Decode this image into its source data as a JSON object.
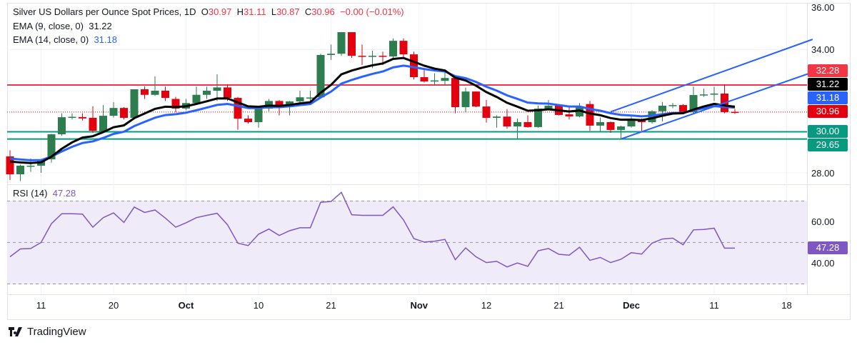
{
  "header": {
    "title": "Silver US Dollars per Ounce Spot Prices, 1D",
    "o_label": "O",
    "o": "30.97",
    "h_label": "H",
    "h": "31.11",
    "l_label": "L",
    "l": "30.87",
    "c_label": "C",
    "c": "30.96",
    "change": "−0.00 (−0.01%)",
    "ema9_label": "EMA (9, close, 0)",
    "ema9_value": "31.22",
    "ema14_label": "EMA (14, close, 0)",
    "ema14_value": "31.18",
    "rsi_label": "RSI (14)",
    "rsi_value": "47.28"
  },
  "brand": "TradingView",
  "colors": {
    "up": "#2e7d4f",
    "down": "#e3000f",
    "ema9": "#000000",
    "ema14": "#2962ff",
    "resistance": "#f23645",
    "support": "#089981",
    "channel": "#2962ff",
    "rsi": "#7e57c2",
    "rsi_band": "#f0ebf8"
  },
  "chart_data": [
    {
      "type": "candlestick",
      "title": "Silver US Dollars per Ounce Spot Prices, 1D",
      "ylim": [
        27.5,
        36.2
      ],
      "price_ticks": [
        "36.00",
        "34.00",
        "28.00"
      ],
      "x_ticks": [
        "11",
        "20",
        "Oct",
        "10",
        "21",
        "Nov",
        "12",
        "21",
        "Dec",
        "11",
        "18"
      ],
      "x_tick_candle_index": [
        3,
        10,
        17,
        24,
        31,
        39.5,
        46,
        53,
        60,
        68,
        75
      ],
      "ohlc": [
        [
          28.8,
          29.1,
          27.65,
          27.93
        ],
        [
          27.93,
          28.4,
          27.6,
          28.35
        ],
        [
          28.32,
          28.7,
          28.05,
          28.35
        ],
        [
          28.35,
          28.66,
          28.0,
          28.66
        ],
        [
          28.66,
          29.9,
          28.5,
          29.88
        ],
        [
          29.88,
          30.9,
          29.8,
          30.71
        ],
        [
          30.71,
          30.9,
          30.6,
          30.73
        ],
        [
          30.72,
          30.9,
          30.55,
          30.65
        ],
        [
          30.68,
          31.25,
          29.95,
          30.05
        ],
        [
          30.02,
          31.3,
          29.95,
          30.78
        ],
        [
          30.78,
          31.45,
          30.7,
          31.16
        ],
        [
          31.16,
          31.2,
          30.6,
          30.68
        ],
        [
          30.68,
          32.07,
          30.6,
          32.07
        ],
        [
          32.07,
          32.2,
          31.6,
          31.8
        ],
        [
          31.8,
          32.7,
          31.75,
          32.0
        ],
        [
          32.0,
          32.2,
          31.5,
          31.65
        ],
        [
          31.6,
          31.7,
          30.95,
          31.13
        ],
        [
          31.13,
          31.6,
          31.05,
          31.4
        ],
        [
          31.4,
          32.2,
          31.35,
          31.8
        ],
        [
          31.8,
          32.2,
          31.6,
          32.0
        ],
        [
          32.0,
          32.8,
          31.5,
          32.16
        ],
        [
          32.16,
          32.3,
          31.5,
          31.65
        ],
        [
          31.65,
          31.7,
          30.1,
          30.64
        ],
        [
          30.64,
          30.8,
          30.4,
          30.47
        ],
        [
          30.47,
          31.15,
          30.2,
          31.13
        ],
        [
          31.13,
          31.6,
          31.0,
          31.5
        ],
        [
          31.5,
          31.55,
          30.8,
          31.2
        ],
        [
          31.2,
          31.5,
          30.8,
          31.48
        ],
        [
          31.48,
          32.0,
          31.4,
          31.68
        ],
        [
          31.65,
          32.0,
          31.35,
          31.67
        ],
        [
          31.68,
          33.8,
          31.6,
          33.74
        ],
        [
          33.74,
          34.25,
          33.5,
          33.8
        ],
        [
          33.8,
          34.85,
          33.7,
          34.85
        ],
        [
          34.85,
          34.85,
          33.6,
          33.7
        ],
        [
          33.7,
          34.25,
          33.25,
          33.68
        ],
        [
          33.68,
          33.95,
          33.1,
          33.7
        ],
        [
          33.7,
          33.9,
          33.25,
          33.68
        ],
        [
          33.67,
          34.55,
          33.6,
          34.43
        ],
        [
          34.43,
          34.55,
          33.6,
          33.77
        ],
        [
          33.77,
          33.9,
          32.55,
          32.66
        ],
        [
          32.66,
          33.1,
          32.4,
          32.45
        ],
        [
          32.48,
          32.85,
          32.25,
          32.5
        ],
        [
          32.48,
          32.9,
          32.25,
          32.62
        ],
        [
          32.62,
          32.62,
          30.9,
          31.2
        ],
        [
          31.2,
          32.15,
          30.95,
          31.96
        ],
        [
          31.96,
          31.96,
          31.2,
          31.23
        ],
        [
          31.23,
          31.55,
          30.45,
          30.68
        ],
        [
          30.68,
          30.8,
          30.2,
          30.74
        ],
        [
          30.74,
          31.11,
          30.15,
          30.26
        ],
        [
          30.26,
          30.65,
          29.65,
          30.47
        ],
        [
          30.47,
          30.8,
          30.2,
          30.23
        ],
        [
          30.23,
          31.27,
          30.2,
          31.13
        ],
        [
          31.13,
          31.55,
          31.05,
          31.27
        ],
        [
          31.27,
          31.3,
          30.8,
          30.82
        ],
        [
          30.85,
          31.27,
          30.6,
          30.75
        ],
        [
          30.75,
          31.4,
          30.7,
          31.23
        ],
        [
          31.35,
          31.5,
          30.05,
          30.3
        ],
        [
          30.3,
          30.7,
          30.0,
          30.47
        ],
        [
          30.47,
          30.5,
          29.95,
          30.09
        ],
        [
          30.09,
          30.3,
          29.65,
          30.26
        ],
        [
          30.26,
          30.75,
          30.2,
          30.6
        ],
        [
          30.6,
          30.65,
          30.05,
          30.47
        ],
        [
          30.47,
          31.05,
          30.4,
          31.0
        ],
        [
          31.0,
          31.45,
          30.5,
          31.27
        ],
        [
          31.28,
          31.4,
          31.15,
          31.3
        ],
        [
          31.3,
          31.35,
          30.9,
          30.95
        ],
        [
          30.95,
          32.2,
          30.9,
          31.79
        ],
        [
          31.82,
          32.1,
          31.7,
          31.82
        ],
        [
          31.86,
          32.2,
          31.5,
          31.86
        ],
        [
          31.86,
          32.3,
          30.9,
          30.96
        ],
        [
          30.97,
          31.11,
          30.87,
          30.96
        ]
      ],
      "ema9_last": 31.22,
      "ema14_last": 31.18,
      "horizontal_levels": [
        {
          "label": "32.28",
          "value": 32.28,
          "kind": "resistance"
        },
        {
          "label": "30.00",
          "value": 30.0,
          "kind": "support"
        },
        {
          "label": "29.65",
          "value": 29.65,
          "kind": "support"
        }
      ],
      "last_price_label": "30.96",
      "ema9_label_value": "31.22",
      "ema14_label_value": "31.18",
      "channel": {
        "lower": [
          [
            59,
            29.65
          ],
          [
            77.5,
            32.9
          ]
        ],
        "upper": [
          [
            58,
            30.97
          ],
          [
            77.5,
            34.5
          ]
        ]
      }
    },
    {
      "type": "line",
      "title": "RSI (14)",
      "ylim": [
        25,
        75
      ],
      "ticks": [
        "60.00",
        "40.00"
      ],
      "bands": [
        70,
        50,
        30
      ],
      "last_label": "47.28",
      "values": [
        43.1,
        46.9,
        47.1,
        50,
        59.1,
        63.9,
        63.9,
        63.7,
        57.4,
        62,
        64.3,
        59.7,
        67.1,
        64.5,
        65.7,
        61.8,
        57.4,
        59.5,
        62,
        63.1,
        64.1,
        58.6,
        49.7,
        48.5,
        54,
        56.5,
        53.4,
        55.7,
        57.1,
        57.1,
        69.4,
        69.8,
        74.2,
        63.4,
        63.1,
        63.1,
        63.1,
        67.2,
        60.9,
        51.9,
        50.2,
        50.6,
        51.5,
        41.7,
        47.4,
        43.1,
        40.3,
        40.9,
        38.2,
        40.1,
        38.5,
        46,
        47.1,
        44.3,
        43.9,
        47.7,
        41.4,
        42.8,
        40.3,
        41.9,
        45.1,
        44.4,
        49.7,
        51.7,
        52.1,
        48.9,
        56.1,
        56.3,
        56.9,
        47.28,
        47.28
      ]
    }
  ]
}
